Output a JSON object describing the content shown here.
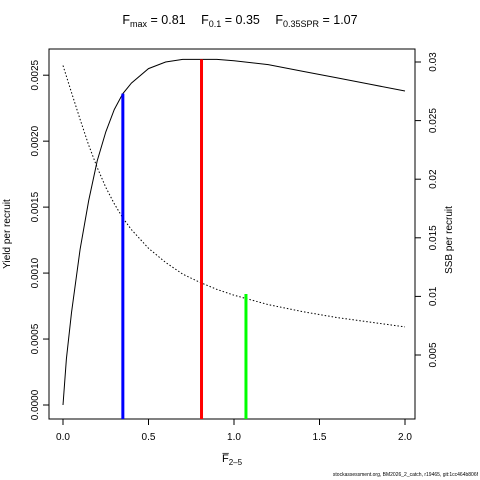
{
  "chart_data": {
    "type": "line",
    "title_parts": [
      {
        "base": "F",
        "sub": "max",
        "text": " = 0.81"
      },
      {
        "base": "F",
        "sub": "0.1",
        "text": " = 0.35"
      },
      {
        "base": "F",
        "sub": "0.35SPR",
        "text": " = 1.07"
      }
    ],
    "xlabel": {
      "base": "F̅",
      "sub": "2–5"
    },
    "ylabel_left": "Yield per recruit",
    "ylabel_right": "SSB per recruit",
    "xlim": [
      0,
      2
    ],
    "ylim_left": [
      0,
      0.0026
    ],
    "ylim_right": [
      0,
      0.0305
    ],
    "x_ticks": [
      0,
      0.5,
      1,
      1.5,
      2
    ],
    "x_tick_labels": [
      "0.0",
      "0.5",
      "1.0",
      "1.5",
      "2.0"
    ],
    "y_left_ticks": [
      0,
      0.0005,
      0.001,
      0.0015,
      0.002,
      0.0025
    ],
    "y_left_tick_labels": [
      "0.0000",
      "0.0005",
      "0.0010",
      "0.0015",
      "0.0020",
      "0.0025"
    ],
    "y_right_ticks": [
      0.005,
      0.01,
      0.015,
      0.02,
      0.025,
      0.03
    ],
    "y_right_tick_labels": [
      "0.005",
      "0.01",
      "0.015",
      "0.02",
      "0.025",
      "0.03"
    ],
    "series": [
      {
        "axis": "left",
        "style": "solid",
        "color": "#000000",
        "x": [
          0,
          0.02,
          0.05,
          0.1,
          0.15,
          0.2,
          0.25,
          0.3,
          0.35,
          0.4,
          0.5,
          0.6,
          0.7,
          0.8,
          0.9,
          1.0,
          1.2,
          1.4,
          1.6,
          1.8,
          2.0
        ],
        "y": [
          0,
          0.00035,
          0.0007,
          0.00118,
          0.00155,
          0.00185,
          0.00207,
          0.00224,
          0.00236,
          0.00244,
          0.00255,
          0.0026,
          0.00262,
          0.00262,
          0.00262,
          0.00261,
          0.00258,
          0.00253,
          0.00248,
          0.00243,
          0.00238
        ]
      },
      {
        "axis": "right",
        "style": "dotted",
        "color": "#000000",
        "x": [
          0,
          0.05,
          0.1,
          0.15,
          0.2,
          0.25,
          0.3,
          0.35,
          0.4,
          0.5,
          0.6,
          0.7,
          0.8,
          0.9,
          1.0,
          1.2,
          1.4,
          1.6,
          1.8,
          2.0
        ],
        "y": [
          0.0297,
          0.0274,
          0.0251,
          0.0229,
          0.021,
          0.0193,
          0.0179,
          0.0167,
          0.0157,
          0.0141,
          0.0129,
          0.0119,
          0.0112,
          0.0106,
          0.0101,
          0.0093,
          0.0087,
          0.0082,
          0.0078,
          0.0074
        ]
      }
    ],
    "reference_lines": [
      {
        "label": "F0.1",
        "x": 0.35,
        "top": 0.00236,
        "axis": "left",
        "color": "#0000ff"
      },
      {
        "label": "Fmax",
        "x": 0.81,
        "top": 0.00262,
        "axis": "left",
        "color": "#ff0000"
      },
      {
        "label": "F0.35SPR",
        "x": 1.07,
        "top": 0.0102,
        "axis": "right",
        "color": "#00ff00"
      }
    ]
  },
  "footer": "stockassessment.org, BM2026_2_catch, r19465, git:1cc464b806f"
}
